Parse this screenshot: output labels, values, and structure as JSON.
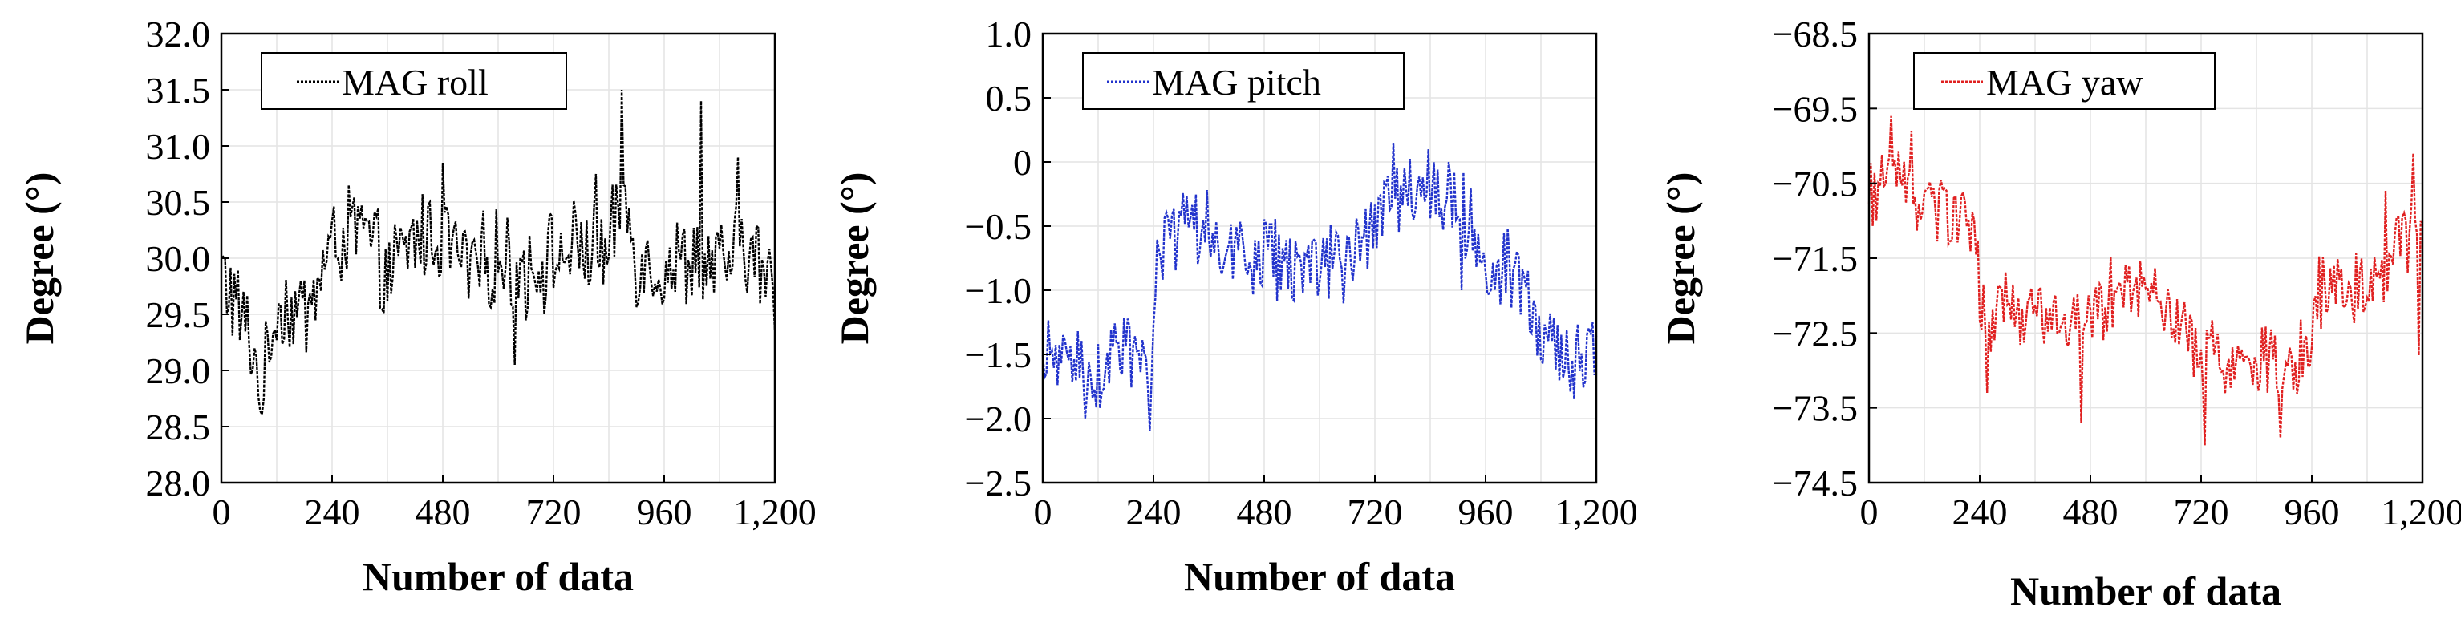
{
  "chart_data": [
    {
      "type": "line",
      "series": [
        {
          "name": "MAG roll",
          "color": "#000000"
        }
      ],
      "legend": "top-left",
      "xlabel": "Number of data",
      "ylabel": "Degree (°)",
      "xlim": [
        0,
        1200
      ],
      "ylim": [
        28.0,
        32.0
      ],
      "xticks": [
        0,
        240,
        480,
        720,
        960,
        1200
      ],
      "xtick_labels": [
        "0",
        "240",
        "480",
        "720",
        "960",
        "1,200"
      ],
      "yticks": [
        28.0,
        28.5,
        29.0,
        29.5,
        30.0,
        30.5,
        31.0,
        31.5,
        32.0
      ],
      "ytick_labels": [
        "28.0",
        "28.5",
        "29.0",
        "29.5",
        "30.0",
        "30.5",
        "31.0",
        "31.5",
        "32.0"
      ],
      "grid": true,
      "segments": [
        [
          0,
          29.9
        ],
        [
          60,
          29.3
        ],
        [
          90,
          28.8
        ],
        [
          120,
          29.6
        ],
        [
          180,
          29.5
        ],
        [
          240,
          30.1
        ],
        [
          300,
          30.3
        ],
        [
          360,
          29.8
        ],
        [
          420,
          30.2
        ],
        [
          480,
          30.2
        ],
        [
          540,
          29.9
        ],
        [
          600,
          30.0
        ],
        [
          660,
          29.9
        ],
        [
          720,
          30.0
        ],
        [
          780,
          30.1
        ],
        [
          840,
          30.0
        ],
        [
          870,
          30.6
        ],
        [
          900,
          30.0
        ],
        [
          960,
          29.9
        ],
        [
          1020,
          30.0
        ],
        [
          1080,
          29.9
        ],
        [
          1140,
          30.1
        ],
        [
          1200,
          29.7
        ]
      ],
      "noise": 0.38,
      "spikes": [
        [
          868,
          31.5
        ],
        [
          1040,
          31.4
        ],
        [
          1120,
          30.9
        ],
        [
          480,
          30.85
        ],
        [
          636,
          29.05
        ],
        [
          92,
          28.75
        ],
        [
          810,
          30.75
        ]
      ]
    },
    {
      "type": "line",
      "series": [
        {
          "name": "MAG pitch",
          "color": "#2233cc"
        }
      ],
      "legend": "top-left",
      "xlabel": "Number of data",
      "ylabel": "Degree (°)",
      "xlim": [
        0,
        1200
      ],
      "ylim": [
        -2.5,
        1.0
      ],
      "xticks": [
        0,
        240,
        480,
        720,
        960,
        1200
      ],
      "xtick_labels": [
        "0",
        "240",
        "480",
        "720",
        "960",
        "1,200"
      ],
      "yticks": [
        -2.5,
        -2.0,
        -1.5,
        -1.0,
        -0.5,
        0,
        0.5,
        1.0
      ],
      "ytick_labels": [
        "−2.5",
        "−2.0",
        "−1.5",
        "−1.0",
        "−0.5",
        "0",
        "0.5",
        "1.0"
      ],
      "grid": true,
      "segments": [
        [
          0,
          -1.6
        ],
        [
          60,
          -1.5
        ],
        [
          120,
          -1.65
        ],
        [
          180,
          -1.45
        ],
        [
          225,
          -1.6
        ],
        [
          236,
          -1.9
        ],
        [
          250,
          -0.6
        ],
        [
          300,
          -0.6
        ],
        [
          360,
          -0.5
        ],
        [
          420,
          -0.7
        ],
        [
          480,
          -0.75
        ],
        [
          540,
          -0.8
        ],
        [
          600,
          -0.85
        ],
        [
          660,
          -0.8
        ],
        [
          700,
          -0.6
        ],
        [
          730,
          -0.3
        ],
        [
          780,
          -0.2
        ],
        [
          840,
          -0.3
        ],
        [
          900,
          -0.35
        ],
        [
          950,
          -0.6
        ],
        [
          965,
          -1.1
        ],
        [
          1000,
          -0.8
        ],
        [
          1060,
          -1.2
        ],
        [
          1120,
          -1.5
        ],
        [
          1200,
          -1.5
        ]
      ],
      "noise": 0.28,
      "spikes": [
        [
          232,
          -2.1
        ],
        [
          760,
          0.15
        ],
        [
          835,
          0.1
        ],
        [
          880,
          0.0
        ],
        [
          908,
          -1.0
        ],
        [
          90,
          -2.0
        ],
        [
          1150,
          -1.85
        ],
        [
          1000,
          -0.55
        ]
      ]
    },
    {
      "type": "line",
      "series": [
        {
          "name": "MAG yaw",
          "color": "#e02020"
        }
      ],
      "legend": "top-left",
      "xlabel": "Number of data",
      "ylabel": "Degree (°)",
      "xlim": [
        0,
        1200
      ],
      "ylim": [
        -74.5,
        -68.5
      ],
      "xticks": [
        0,
        240,
        480,
        720,
        960,
        1200
      ],
      "xtick_labels": [
        "0",
        "240",
        "480",
        "720",
        "960",
        "1,200"
      ],
      "yticks": [
        -74.5,
        -73.5,
        -72.5,
        -71.5,
        -70.5,
        -69.5,
        -68.5
      ],
      "ytick_labels": [
        "−74.5",
        "−73.5",
        "−72.5",
        "−71.5",
        "−70.5",
        "−69.5",
        "−68.5"
      ],
      "grid": true,
      "segments": [
        [
          0,
          -70.7
        ],
        [
          60,
          -70.3
        ],
        [
          120,
          -70.8
        ],
        [
          180,
          -71.0
        ],
        [
          230,
          -71.0
        ],
        [
          245,
          -72.3
        ],
        [
          300,
          -72.2
        ],
        [
          360,
          -72.3
        ],
        [
          420,
          -72.4
        ],
        [
          480,
          -72.3
        ],
        [
          540,
          -71.9
        ],
        [
          600,
          -71.9
        ],
        [
          660,
          -72.2
        ],
        [
          700,
          -72.5
        ],
        [
          720,
          -72.8
        ],
        [
          780,
          -72.9
        ],
        [
          840,
          -72.8
        ],
        [
          900,
          -72.9
        ],
        [
          950,
          -72.8
        ],
        [
          970,
          -72.0
        ],
        [
          1020,
          -71.8
        ],
        [
          1080,
          -71.9
        ],
        [
          1140,
          -71.3
        ],
        [
          1200,
          -71.2
        ]
      ],
      "noise": 0.45,
      "spikes": [
        [
          48,
          -69.6
        ],
        [
          90,
          -69.8
        ],
        [
          728,
          -74.0
        ],
        [
          890,
          -73.9
        ],
        [
          1120,
          -70.6
        ],
        [
          1180,
          -70.1
        ],
        [
          1190,
          -72.8
        ],
        [
          255,
          -73.3
        ],
        [
          460,
          -73.7
        ]
      ]
    }
  ]
}
